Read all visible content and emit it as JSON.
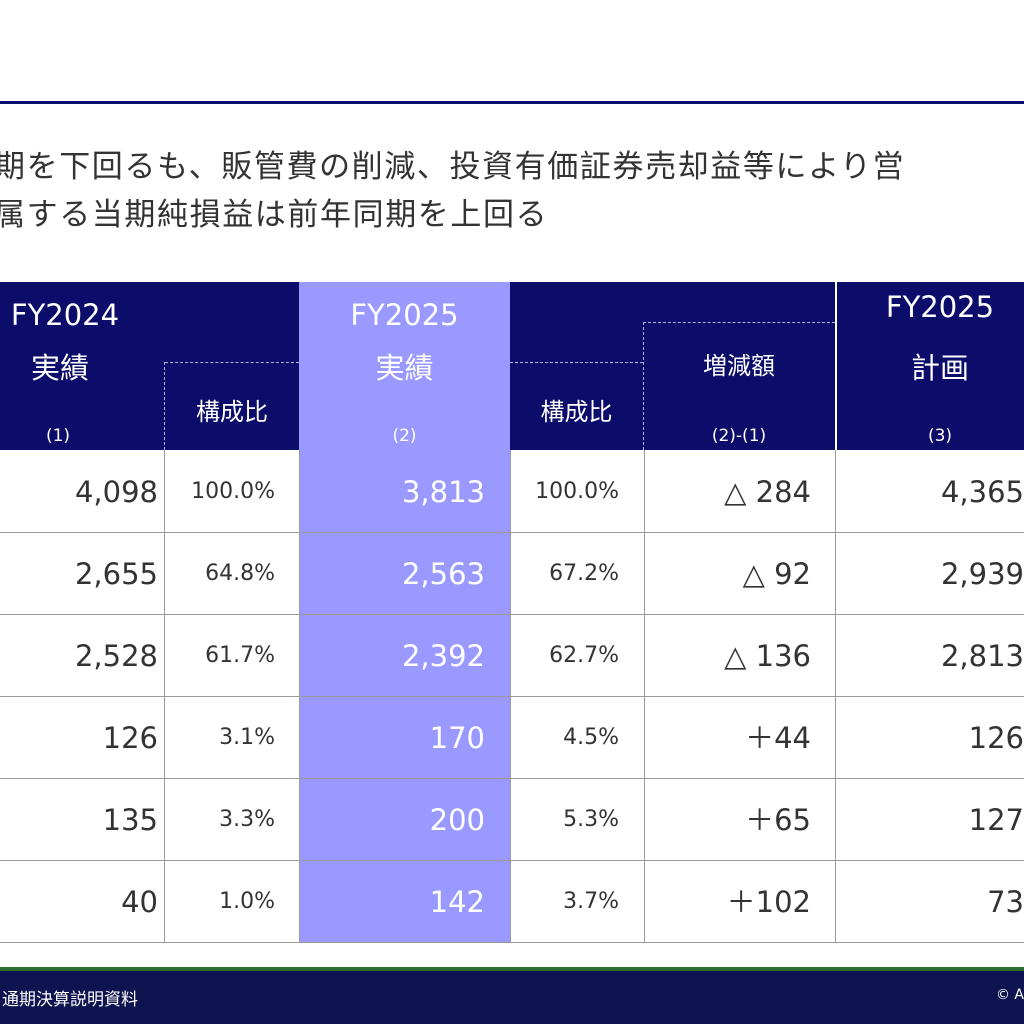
{
  "headline": {
    "line1": "期を下回るも、販管費の削減、投資有価証券売却益等により営",
    "line2": "属する当期純損益は前年同期を上回る"
  },
  "header": {
    "fy2024": "FY2024",
    "fy2024_sub": "実績",
    "fy2024_ratio": "構成比",
    "fy2024_marker": "(1)",
    "fy2025": "FY2025",
    "fy2025_sub": "実績",
    "fy2025_marker": "(2)",
    "fy2025_ratio": "構成比",
    "diff": "増減額",
    "diff_marker": "(2)-(1)",
    "plan_title": "FY2025",
    "plan_sub": "計画",
    "plan_marker": "(3)"
  },
  "rows": [
    {
      "fy2024": "4,098",
      "fy2024_ratio": "100.0%",
      "fy2025": "3,813",
      "fy2025_ratio": "100.0%",
      "diff": "△ 284",
      "plan": "4,365"
    },
    {
      "fy2024": "2,655",
      "fy2024_ratio": "64.8%",
      "fy2025": "2,563",
      "fy2025_ratio": "67.2%",
      "diff": "△ 92",
      "plan": "2,939"
    },
    {
      "fy2024": "2,528",
      "fy2024_ratio": "61.7%",
      "fy2025": "2,392",
      "fy2025_ratio": "62.7%",
      "diff": "△ 136",
      "plan": "2,813"
    },
    {
      "fy2024": "126",
      "fy2024_ratio": "3.1%",
      "fy2025": "170",
      "fy2025_ratio": "4.5%",
      "diff": "＋44",
      "plan": "126"
    },
    {
      "fy2024": "135",
      "fy2024_ratio": "3.3%",
      "fy2025": "200",
      "fy2025_ratio": "5.3%",
      "diff": "＋65",
      "plan": "127"
    },
    {
      "fy2024": "40",
      "fy2024_ratio": "1.0%",
      "fy2025": "142",
      "fy2025_ratio": "3.7%",
      "diff": "＋102",
      "plan": "73"
    }
  ],
  "footer": {
    "left": "通期決算説明資料",
    "right": "© A"
  },
  "colors": {
    "navy": "#0c0c6b",
    "highlight": "#9999ff",
    "footer": "#0e1450",
    "footer_accent": "#2e6b2e"
  }
}
